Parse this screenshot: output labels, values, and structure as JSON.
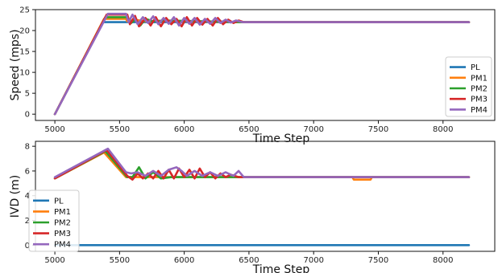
{
  "chart_data": [
    {
      "type": "line",
      "title": "",
      "xlabel": "Time Step",
      "ylabel": "Speed (mps)",
      "xlim": [
        4850,
        8400
      ],
      "ylim": [
        -1.5,
        25
      ],
      "xticks": [
        5000,
        5500,
        6000,
        6500,
        7000,
        7500,
        8000
      ],
      "yticks": [
        0,
        5,
        10,
        15,
        20,
        25
      ],
      "grid": false,
      "legend": "center-right",
      "series": [
        {
          "name": "PL",
          "color": "#1f77b4",
          "x": [
            5000,
            5370,
            5550,
            8200
          ],
          "y": [
            0,
            22,
            22,
            22
          ]
        },
        {
          "name": "PM1",
          "color": "#ff7f0e",
          "x": [
            5000,
            5380,
            5550,
            5560,
            5620,
            5700,
            5800,
            6450,
            8200
          ],
          "y": [
            0,
            22.8,
            22.8,
            22.2,
            22.6,
            22.2,
            22.3,
            22,
            22
          ]
        },
        {
          "name": "PM2",
          "color": "#2ca02c",
          "x": [
            5000,
            5390,
            5560,
            5590,
            5620,
            5660,
            5700,
            5760,
            5850,
            6450,
            8200
          ],
          "y": [
            0,
            23.2,
            23.2,
            21.8,
            22.6,
            21.2,
            22.8,
            22.2,
            22.4,
            22,
            22
          ]
        },
        {
          "name": "PM3",
          "color": "#d62728",
          "x": [
            5000,
            5400,
            5560,
            5580,
            5620,
            5650,
            5700,
            5740,
            5780,
            5820,
            5860,
            5900,
            5940,
            5980,
            6020,
            6060,
            6100,
            6140,
            6180,
            6220,
            6260,
            6300,
            6340,
            6380,
            6420,
            6460,
            8200
          ],
          "y": [
            0,
            23.8,
            23.8,
            21.5,
            23.5,
            21.0,
            23.0,
            21.2,
            23.2,
            21.0,
            23.0,
            21.5,
            22.8,
            21.0,
            23.2,
            21.2,
            23.0,
            21.4,
            22.8,
            21.2,
            23.0,
            21.5,
            22.6,
            21.8,
            22.4,
            22,
            22
          ]
        },
        {
          "name": "PM4",
          "color": "#9467bd",
          "x": [
            5000,
            5410,
            5550,
            5570,
            5600,
            5640,
            5680,
            5720,
            5760,
            5800,
            5840,
            5880,
            5920,
            5960,
            6000,
            6040,
            6080,
            6120,
            6160,
            6200,
            6240,
            6280,
            6320,
            6360,
            6400,
            6450,
            8200
          ],
          "y": [
            0,
            24.0,
            24.0,
            22.0,
            23.8,
            21.5,
            23.2,
            21.8,
            23.4,
            21.5,
            23.0,
            21.6,
            23.2,
            21.2,
            23.0,
            21.6,
            23.0,
            21.4,
            22.8,
            21.6,
            23.0,
            21.8,
            22.6,
            21.9,
            22.4,
            22,
            22
          ]
        }
      ]
    },
    {
      "type": "line",
      "title": "",
      "xlabel": "Time Step",
      "ylabel": "IVD (m)",
      "xlim": [
        4850,
        8400
      ],
      "ylim": [
        -0.5,
        8.4
      ],
      "xticks": [
        5000,
        5500,
        6000,
        6500,
        7000,
        7500,
        8000
      ],
      "yticks": [
        0,
        2,
        4,
        6,
        8
      ],
      "grid": false,
      "legend": "lower-left",
      "series": [
        {
          "name": "PL",
          "color": "#1f77b4",
          "x": [
            5000,
            8200
          ],
          "y": [
            0,
            0
          ]
        },
        {
          "name": "PM1",
          "color": "#ff7f0e",
          "x": [
            5000,
            5380,
            5550,
            7300,
            7310,
            7440,
            7450,
            8200
          ],
          "y": [
            5.4,
            7.5,
            5.5,
            5.5,
            5.3,
            5.3,
            5.5,
            5.5
          ]
        },
        {
          "name": "PM2",
          "color": "#2ca02c",
          "x": [
            5000,
            5390,
            5560,
            5600,
            5650,
            5700,
            5760,
            5820,
            5900,
            8200
          ],
          "y": [
            5.4,
            7.6,
            5.5,
            5.5,
            6.3,
            5.4,
            5.9,
            5.4,
            5.5,
            5.5
          ]
        },
        {
          "name": "PM3",
          "color": "#d62728",
          "x": [
            5000,
            5400,
            5560,
            5600,
            5640,
            5680,
            5720,
            5760,
            5800,
            5840,
            5880,
            5920,
            5960,
            6000,
            6040,
            6080,
            6120,
            6160,
            6200,
            6240,
            6280,
            6320,
            6360,
            6420,
            8200
          ],
          "y": [
            5.4,
            7.7,
            5.6,
            5.3,
            5.8,
            5.4,
            5.8,
            5.4,
            6.0,
            5.4,
            6.1,
            5.4,
            6.2,
            5.5,
            6.1,
            5.4,
            6.2,
            5.5,
            5.9,
            5.4,
            5.8,
            5.5,
            5.7,
            5.5,
            5.5
          ]
        },
        {
          "name": "PM4",
          "color": "#9467bd",
          "x": [
            5000,
            5410,
            5550,
            5590,
            5640,
            5700,
            5760,
            5820,
            5880,
            5940,
            5980,
            6020,
            6080,
            6140,
            6200,
            6260,
            6320,
            6380,
            6420,
            6460,
            8200
          ],
          "y": [
            5.5,
            7.8,
            5.9,
            5.8,
            5.9,
            5.6,
            6.0,
            5.6,
            6.1,
            6.3,
            6.0,
            5.6,
            6.0,
            5.6,
            5.9,
            5.6,
            5.9,
            5.6,
            6.0,
            5.5,
            5.5
          ]
        }
      ]
    }
  ]
}
